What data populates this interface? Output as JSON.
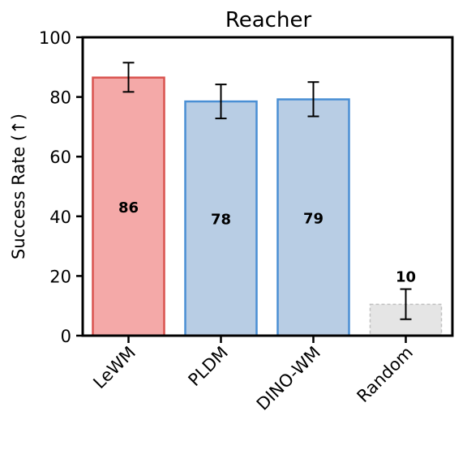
{
  "chart_data": {
    "type": "bar",
    "title": "Reacher",
    "xlabel": "",
    "ylabel": "Success Rate (↑)",
    "ylim": [
      0,
      100
    ],
    "yticks": [
      0,
      20,
      40,
      60,
      80,
      100
    ],
    "grid": false,
    "categories": [
      "LeWM",
      "PLDM",
      "DINO-WM",
      "Random"
    ],
    "values": [
      86.5,
      78.5,
      79.2,
      10.5
    ],
    "value_labels": [
      "86",
      "78",
      "79",
      "10"
    ],
    "error_low": [
      81.7,
      72.8,
      73.5,
      5.5
    ],
    "error_high": [
      91.5,
      84.2,
      85.0,
      15.6
    ],
    "bar_fill": [
      "#f4a9a8",
      "#b8cde4",
      "#b8cde4",
      "#e5e5e5"
    ],
    "bar_edge": [
      "#d9534f",
      "#4a8fd4",
      "#4a8fd4",
      "#c0c0c0"
    ],
    "bar_edge_style": [
      "solid",
      "solid",
      "solid",
      "dashed"
    ]
  }
}
